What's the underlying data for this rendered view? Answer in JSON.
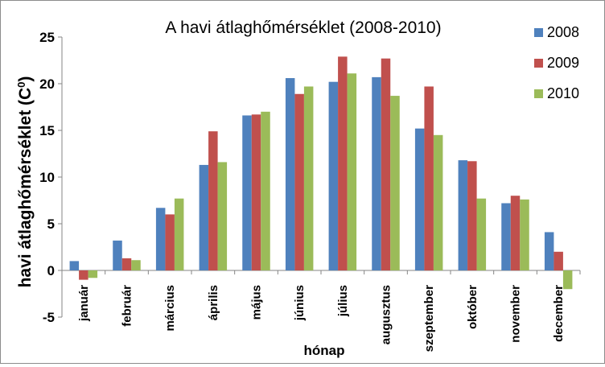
{
  "chart_data": {
    "type": "bar",
    "title": "A havi átlaghőmérséklet (2008-2010)",
    "xlabel": "hónap",
    "ylabel_main": "havi átlaghőmérséklet (C",
    "ylabel_sup": "0",
    "ylabel_close": ")",
    "ylim": [
      -5,
      25
    ],
    "yticks": [
      -5,
      0,
      5,
      10,
      15,
      20,
      25
    ],
    "grid": false,
    "legend_position": "top-right",
    "categories": [
      "január",
      "február",
      "március",
      "április",
      "május",
      "június",
      "július",
      "augusztus",
      "szeptember",
      "október",
      "november",
      "december"
    ],
    "series": [
      {
        "name": "2008",
        "color": "#4f81bd",
        "values": [
          1.0,
          3.2,
          6.7,
          11.3,
          16.6,
          20.6,
          20.2,
          20.7,
          15.2,
          11.8,
          7.2,
          4.1
        ]
      },
      {
        "name": "2009",
        "color": "#c0504d",
        "values": [
          -1.0,
          1.3,
          6.0,
          14.9,
          16.7,
          18.9,
          22.9,
          22.7,
          19.7,
          11.7,
          8.0,
          2.0
        ]
      },
      {
        "name": "2010",
        "color": "#9bbb59",
        "values": [
          -0.8,
          1.1,
          7.7,
          11.6,
          17.0,
          19.7,
          21.1,
          18.7,
          14.5,
          7.7,
          7.6,
          -2.0
        ]
      }
    ]
  }
}
